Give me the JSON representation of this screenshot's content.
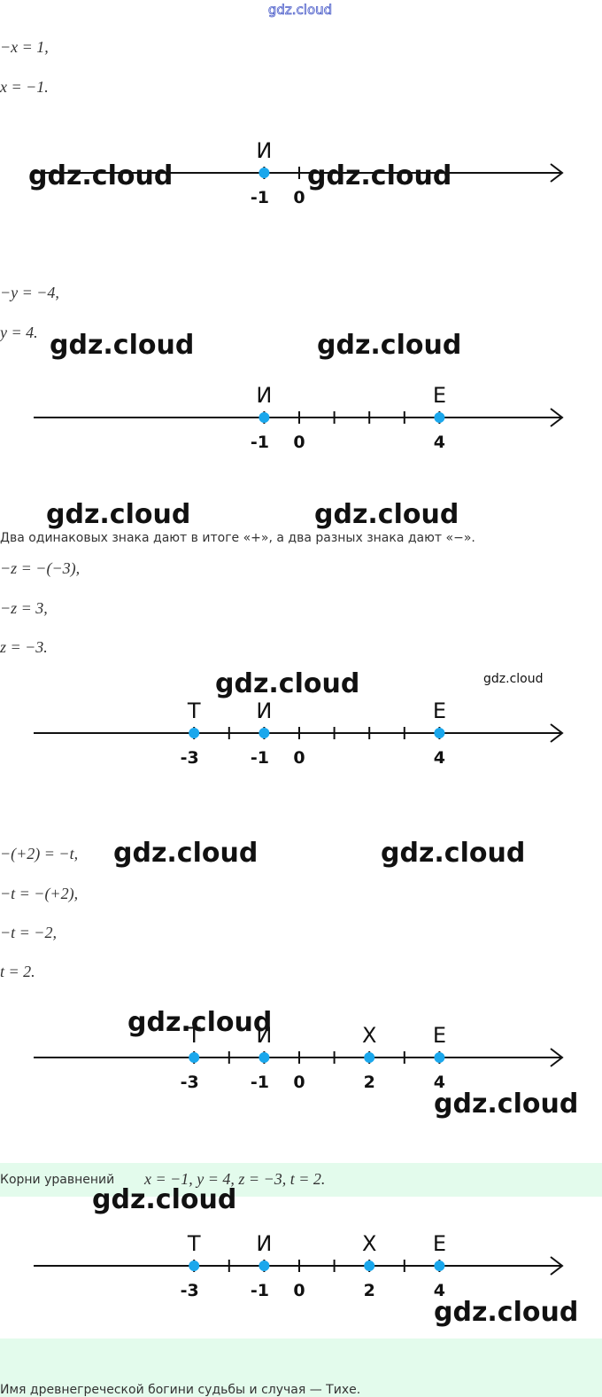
{
  "watermark_top": "gdz.cloud",
  "watermarks": [
    "gdz.cloud",
    "gdz.cloud",
    "gdz.cloud",
    "gdz.cloud",
    "gdz.cloud",
    "gdz.cloud",
    "gdz.cloud",
    "gdz.cloud",
    "gdz.cloud",
    "gdz.cloud",
    "gdz.cloud",
    "gdz.cloud",
    "gdz.cloud",
    "gdz.cloud"
  ],
  "content": [
    {
      "kind": "math",
      "text": "−x = 1,"
    },
    {
      "kind": "math",
      "text": "x = −1."
    },
    {
      "kind": "numberline",
      "points": [
        {
          "letter": "И",
          "value": -1
        }
      ],
      "labels": [
        -1,
        0
      ]
    },
    {
      "kind": "math",
      "text": "−y = −4,"
    },
    {
      "kind": "math",
      "text": "y = 4."
    },
    {
      "kind": "numberline",
      "points": [
        {
          "letter": "И",
          "value": -1
        },
        {
          "letter": "Е",
          "value": 4
        }
      ],
      "labels": [
        -1,
        0,
        4
      ]
    },
    {
      "kind": "note",
      "text": "Два одинаковых знака дают в итоге «+», а два разных знака дают «−»."
    },
    {
      "kind": "math",
      "text": "−z = −(−3),"
    },
    {
      "kind": "math",
      "text": "−z = 3,"
    },
    {
      "kind": "math",
      "text": "z = −3."
    },
    {
      "kind": "numberline",
      "points": [
        {
          "letter": "Т",
          "value": -3
        },
        {
          "letter": "И",
          "value": -1
        },
        {
          "letter": "Е",
          "value": 4
        }
      ],
      "labels": [
        -3,
        -1,
        0,
        4
      ]
    },
    {
      "kind": "math",
      "text": "−(+2) = −t,"
    },
    {
      "kind": "math",
      "text": "−t = −(+2),"
    },
    {
      "kind": "math",
      "text": "−t = −2,"
    },
    {
      "kind": "math",
      "text": "t = 2."
    },
    {
      "kind": "numberline",
      "points": [
        {
          "letter": "Т",
          "value": -3
        },
        {
          "letter": "И",
          "value": -1
        },
        {
          "letter": "Х",
          "value": 2
        },
        {
          "letter": "Е",
          "value": 4
        }
      ],
      "labels": [
        -3,
        -1,
        0,
        2,
        4
      ]
    },
    {
      "kind": "answer",
      "prefix": "Корни уравнений",
      "math": "x = −1, y = 4, z = −3, t = 2."
    },
    {
      "kind": "numberline",
      "points": [
        {
          "letter": "Т",
          "value": -3
        },
        {
          "letter": "И",
          "value": -1
        },
        {
          "letter": "Х",
          "value": 2
        },
        {
          "letter": "Е",
          "value": 4
        }
      ],
      "labels": [
        -3,
        -1,
        0,
        2,
        4
      ]
    },
    {
      "kind": "answer_text",
      "text": "Имя древнегреческой богини судьбы и случая — Тихе."
    }
  ]
}
